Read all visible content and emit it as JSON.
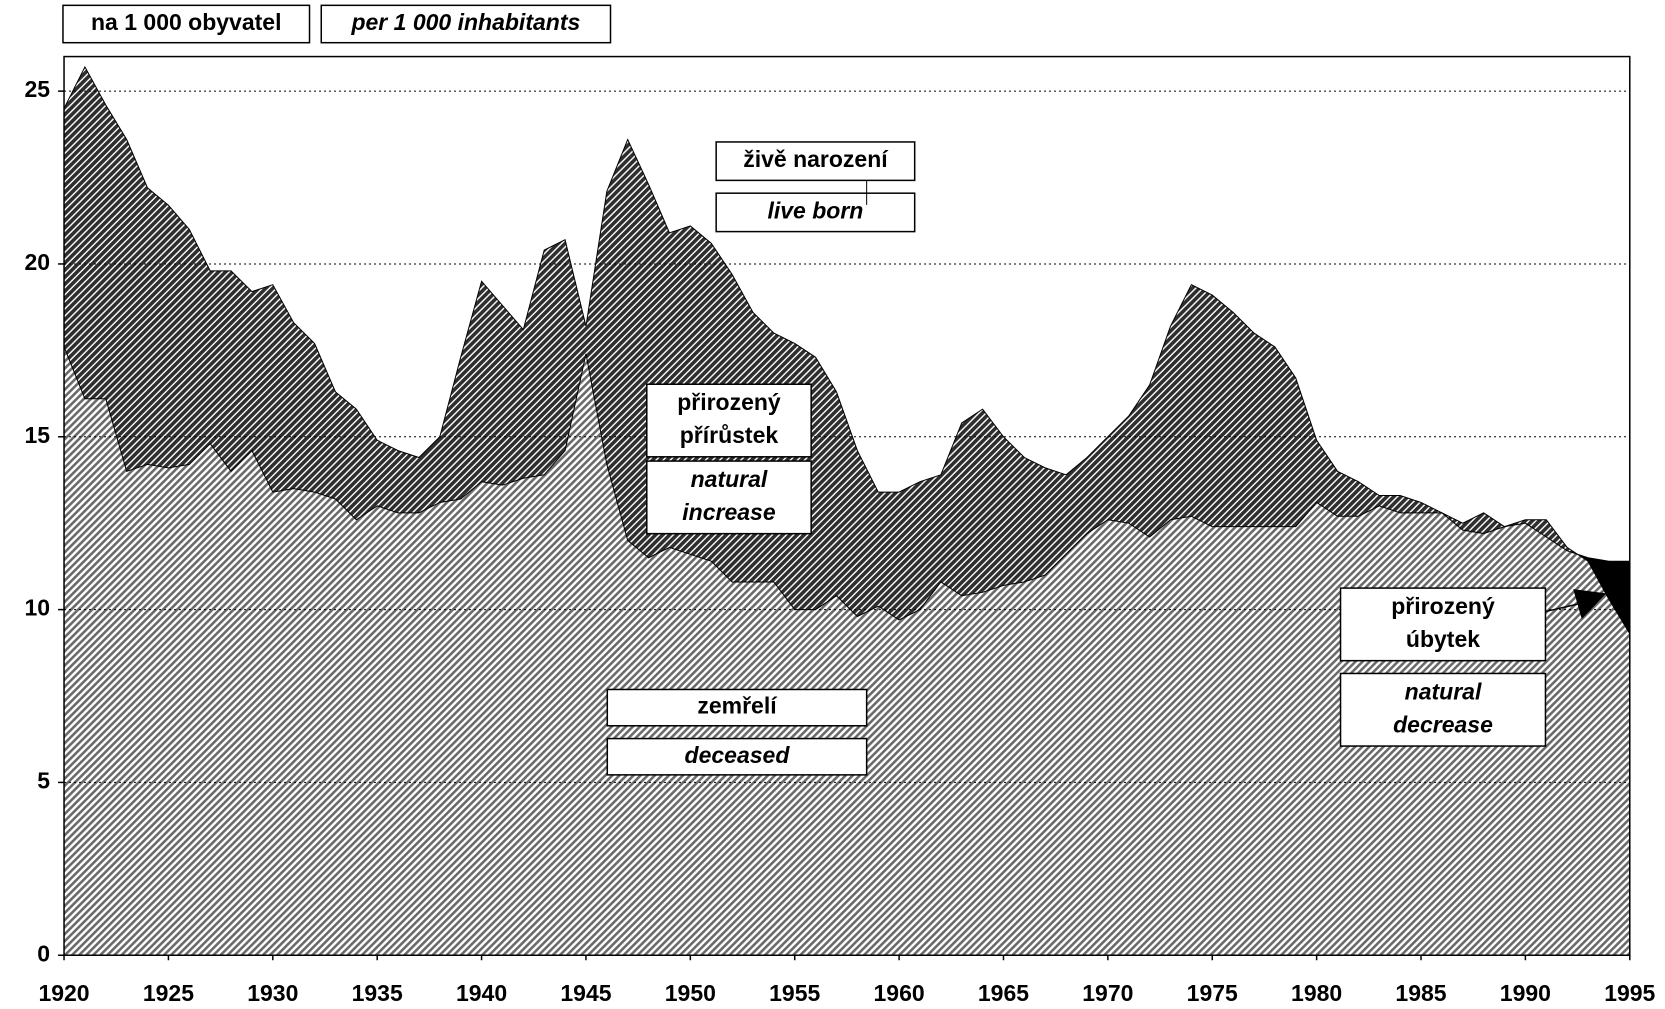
{
  "chart_data": {
    "type": "area",
    "unit_labels": [
      "na 1 000 obyvatel",
      "per 1 000 inhabitants"
    ],
    "x": [
      1920,
      1921,
      1922,
      1923,
      1924,
      1925,
      1926,
      1927,
      1928,
      1929,
      1930,
      1931,
      1932,
      1933,
      1934,
      1935,
      1936,
      1937,
      1938,
      1939,
      1940,
      1941,
      1942,
      1943,
      1944,
      1945,
      1946,
      1947,
      1948,
      1949,
      1950,
      1951,
      1952,
      1953,
      1954,
      1955,
      1956,
      1957,
      1958,
      1959,
      1960,
      1961,
      1962,
      1963,
      1964,
      1965,
      1966,
      1967,
      1968,
      1969,
      1970,
      1971,
      1972,
      1973,
      1974,
      1975,
      1976,
      1977,
      1978,
      1979,
      1980,
      1981,
      1982,
      1983,
      1984,
      1985,
      1986,
      1987,
      1988,
      1989,
      1990,
      1991,
      1992,
      1993,
      1994,
      1995
    ],
    "xlim": [
      1920,
      1995
    ],
    "xticks": [
      1920,
      1925,
      1930,
      1935,
      1940,
      1945,
      1950,
      1955,
      1960,
      1965,
      1970,
      1975,
      1980,
      1985,
      1990,
      1995
    ],
    "ylim": [
      0,
      26
    ],
    "yticks": [
      0,
      5,
      10,
      15,
      20,
      25
    ],
    "grid": true,
    "series": [
      {
        "name": "živě narození",
        "color": "#2e2e2e",
        "values": [
          24.5,
          25.7,
          24.6,
          23.6,
          22.2,
          21.7,
          21.0,
          19.8,
          19.8,
          19.2,
          19.4,
          18.3,
          17.7,
          16.3,
          15.8,
          14.9,
          14.6,
          14.4,
          15.0,
          17.3,
          19.5,
          18.8,
          18.1,
          20.4,
          20.7,
          18.2,
          22.1,
          23.6,
          22.3,
          20.9,
          21.1,
          20.6,
          19.7,
          18.6,
          18.0,
          17.7,
          17.3,
          16.3,
          14.6,
          13.4,
          13.4,
          13.7,
          13.9,
          15.4,
          15.8,
          15.0,
          14.4,
          14.1,
          13.9,
          14.4,
          15.0,
          15.6,
          16.5,
          18.2,
          19.4,
          19.1,
          18.6,
          18.0,
          17.6,
          16.7,
          14.9,
          14.0,
          13.7,
          13.3,
          13.3,
          13.1,
          12.8,
          12.5,
          12.8,
          12.4,
          12.6,
          12.6,
          11.8,
          11.4,
          10.3,
          9.3
        ]
      },
      {
        "name": "zemřelí",
        "color": "#6a6a6a",
        "values": [
          17.6,
          16.1,
          16.1,
          14.0,
          14.2,
          14.1,
          14.2,
          14.8,
          14.0,
          14.6,
          13.4,
          13.5,
          13.4,
          13.2,
          12.6,
          13.0,
          12.8,
          12.8,
          13.1,
          13.2,
          13.7,
          13.6,
          13.8,
          13.9,
          14.6,
          17.4,
          14.2,
          12.0,
          11.5,
          11.8,
          11.6,
          11.4,
          10.8,
          10.8,
          10.8,
          10.0,
          10.0,
          10.4,
          9.8,
          10.1,
          9.7,
          10.0,
          10.8,
          10.4,
          10.5,
          10.7,
          10.8,
          11.0,
          11.6,
          12.2,
          12.6,
          12.5,
          12.1,
          12.6,
          12.7,
          12.4,
          12.4,
          12.4,
          12.4,
          12.4,
          13.1,
          12.7,
          12.7,
          13.0,
          12.8,
          12.8,
          12.8,
          12.3,
          12.2,
          12.4,
          12.5,
          12.1,
          11.7,
          11.5,
          11.4,
          11.4
        ]
      }
    ],
    "annotations": [
      {
        "lines": [
          "live born"
        ]
      },
      {
        "lines": [
          "přirozený",
          "přírůstek"
        ]
      },
      {
        "lines": [
          "natural",
          "increase"
        ]
      },
      {
        "lines": [
          "deceased"
        ]
      },
      {
        "lines": [
          "přirozený",
          "úbytek"
        ]
      },
      {
        "lines": [
          "natural",
          "decrease"
        ]
      }
    ]
  }
}
